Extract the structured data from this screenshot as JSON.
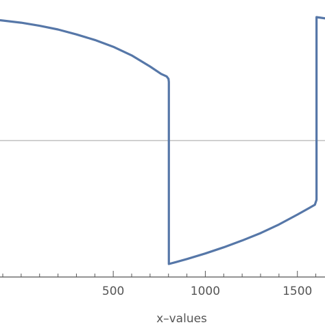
{
  "chart_data": {
    "type": "line",
    "title": "",
    "xlabel": "x–values",
    "ylabel": "",
    "xlim": [
      -115,
      1650
    ],
    "ylim": [
      -1.1,
      1.1
    ],
    "x_ticks": [
      {
        "value": 500,
        "label": "500"
      },
      {
        "value": 1000,
        "label": "1000"
      },
      {
        "value": 1500,
        "label": "1500"
      }
    ],
    "zero_line": true,
    "grid": false,
    "series": [
      {
        "color": "#5677a8",
        "points": [
          [
            -115,
            0.975
          ],
          [
            0,
            0.955
          ],
          [
            100,
            0.93
          ],
          [
            200,
            0.9
          ],
          [
            300,
            0.86
          ],
          [
            400,
            0.815
          ],
          [
            500,
            0.76
          ],
          [
            600,
            0.69
          ],
          [
            700,
            0.6
          ],
          [
            760,
            0.54
          ],
          [
            790,
            0.52
          ],
          [
            800,
            0.5
          ],
          [
            802,
            0.475
          ],
          [
            802,
            -1.0
          ],
          [
            840,
            -0.985
          ],
          [
            900,
            -0.96
          ],
          [
            1000,
            -0.915
          ],
          [
            1100,
            -0.865
          ],
          [
            1200,
            -0.81
          ],
          [
            1300,
            -0.75
          ],
          [
            1400,
            -0.68
          ],
          [
            1500,
            -0.6
          ],
          [
            1560,
            -0.55
          ],
          [
            1595,
            -0.52
          ],
          [
            1604,
            -0.48
          ],
          [
            1604,
            1.0
          ],
          [
            1650,
            0.99
          ]
        ]
      }
    ],
    "colors": {
      "series": "#5677a8",
      "axis": "#555555",
      "zero_line": "#a0a0a0"
    }
  }
}
